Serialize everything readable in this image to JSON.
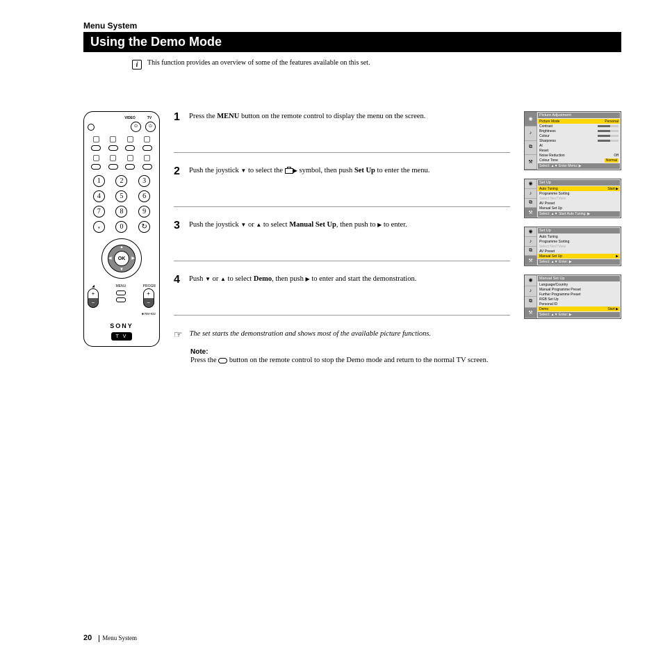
{
  "header": {
    "section": "Menu System",
    "title": "Using the Demo Mode",
    "intro": "This function provides an overview of some of the features available on this set."
  },
  "remote": {
    "top_labels": [
      "VIDEO",
      "TV"
    ],
    "power_sym": "⏻",
    "ok": "OK",
    "numbers": [
      [
        "1",
        "2",
        "3"
      ],
      [
        "4",
        "5",
        "6"
      ],
      [
        "7",
        "8",
        "9"
      ],
      [
        "�satellite",
        "0",
        "↻"
      ]
    ],
    "progr": "PROGR",
    "menu": "MENU",
    "model": "RM-932",
    "brand": "SONY",
    "badge": "T V"
  },
  "steps": [
    {
      "n": "1",
      "pre": "Press the ",
      "bold1": "MENU",
      "post": " button on the remote control to display the menu on the screen."
    },
    {
      "n": "2",
      "pre": "Push the joystick ",
      "sym1": "▼",
      "mid1": " to select the ",
      "icon": "tool",
      "mid2": " symbol, then push ",
      "sym2": "▶",
      "mid3": " to enter the ",
      "bold1": "Set Up",
      "post": " menu."
    },
    {
      "n": "3",
      "pre": "Push the joystick ",
      "sym1": "▼",
      "mid1": " or ",
      "sym2": "▲",
      "mid2": " to select ",
      "bold1": "Manual Set Up",
      "mid3": ", then push to ",
      "sym3": "▶",
      "post": " to enter."
    },
    {
      "n": "4",
      "pre": "Push ",
      "sym1": "▼",
      "mid1": " or ",
      "sym2": "▲",
      "mid2": " to select ",
      "bold1": "Demo",
      "mid3": ", then push ",
      "sym3": "▶",
      "post": " to enter and start the demonstration."
    }
  ],
  "hand_note": "The set starts the demonstration and shows most of the available picture functions.",
  "note": {
    "label": "Note:",
    "pre": "Press the ",
    "post": " button on the remote control to stop the Demo mode and return to the normal TV screen."
  },
  "screens": [
    {
      "title": "Picture Adjustment",
      "active_tab": 0,
      "lines": [
        {
          "l": "Picture Mode",
          "r": "Personal",
          "hl": true
        },
        {
          "l": "Contrast",
          "bar": true
        },
        {
          "l": "Brightness",
          "bar": true
        },
        {
          "l": "Colour",
          "bar": true
        },
        {
          "l": "Sharpness",
          "bar": true
        },
        {
          "l": "AI",
          "r": ""
        },
        {
          "l": "Reset",
          "r": ""
        },
        {
          "l": "Noise Reduction",
          "r": "Off"
        },
        {
          "l": "Colour Tone",
          "r": "Normal",
          "rhl": true
        }
      ],
      "foot": "Select: ▲▼  Enter Menu: ▶"
    },
    {
      "title": "Set Up",
      "active_tab": 3,
      "lines": [
        {
          "l": "Auto Tuning",
          "r": "Start ▶",
          "hl": true
        },
        {
          "l": "Programme Sorting"
        },
        {
          "l": "Select NexTView",
          "dim": true
        },
        {
          "l": "AV Preset"
        },
        {
          "l": "Manual Set Up"
        }
      ],
      "foot": "Select: ▲▼  Start Auto Tuning: ▶"
    },
    {
      "title": "Set Up",
      "active_tab": 3,
      "lines": [
        {
          "l": "Auto Tuning"
        },
        {
          "l": "Programme Sorting"
        },
        {
          "l": "Select NexTView",
          "dim": true
        },
        {
          "l": "AV Preset"
        },
        {
          "l": "Manual Set Up",
          "r": "▶",
          "hl": true
        }
      ],
      "foot": "Select: ▲▼  Enter: ▶"
    },
    {
      "title": "Manual Set Up",
      "active_tab": 3,
      "lines": [
        {
          "l": "Language/Country"
        },
        {
          "l": "Manual Programme Preset"
        },
        {
          "l": "Further Programme Preset"
        },
        {
          "l": "RGB Set Up"
        },
        {
          "l": "Personal ID"
        },
        {
          "l": "Demo",
          "r": "Start ▶",
          "hl": true
        }
      ],
      "foot": "Select: ▲▼  Enter: ▶"
    }
  ],
  "footer": {
    "page": "20",
    "section": "Menu System"
  },
  "tab_icons": [
    "◉",
    "♪",
    "⧉",
    "⚒"
  ]
}
